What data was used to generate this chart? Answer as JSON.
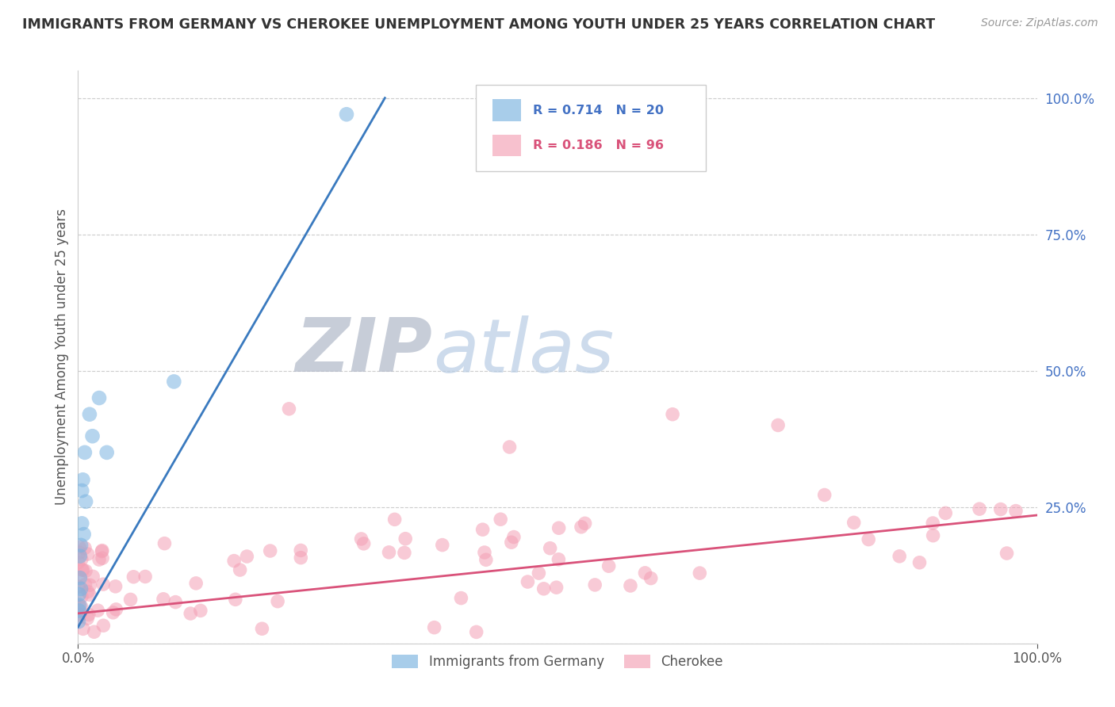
{
  "title": "IMMIGRANTS FROM GERMANY VS CHEROKEE UNEMPLOYMENT AMONG YOUTH UNDER 25 YEARS CORRELATION CHART",
  "source": "Source: ZipAtlas.com",
  "ylabel": "Unemployment Among Youth under 25 years",
  "ytick_values": [
    0.0,
    0.25,
    0.5,
    0.75,
    1.0
  ],
  "ytick_labels": [
    "",
    "25.0%",
    "50.0%",
    "75.0%",
    "100.0%"
  ],
  "xtick_values": [
    0.0,
    1.0
  ],
  "xtick_labels": [
    "0.0%",
    "100.0%"
  ],
  "blue_line_x": [
    0.0,
    0.32
  ],
  "blue_line_y": [
    0.03,
    1.0
  ],
  "pink_line_x": [
    0.0,
    1.0
  ],
  "pink_line_y": [
    0.055,
    0.235
  ],
  "background_color": "#ffffff",
  "grid_color": "#cccccc",
  "title_color": "#333333",
  "axis_color": "#555555",
  "ytick_color": "#4472c4",
  "blue_color": "#7ab3e0",
  "pink_color": "#f4a0b5",
  "blue_line_color": "#3a7abf",
  "pink_line_color": "#d9527a",
  "legend_blue_text_color": "#4472c4",
  "legend_pink_text_color": "#d9527a",
  "watermark_zip_color": "#b0b8c8",
  "watermark_atlas_color": "#b8cce4"
}
